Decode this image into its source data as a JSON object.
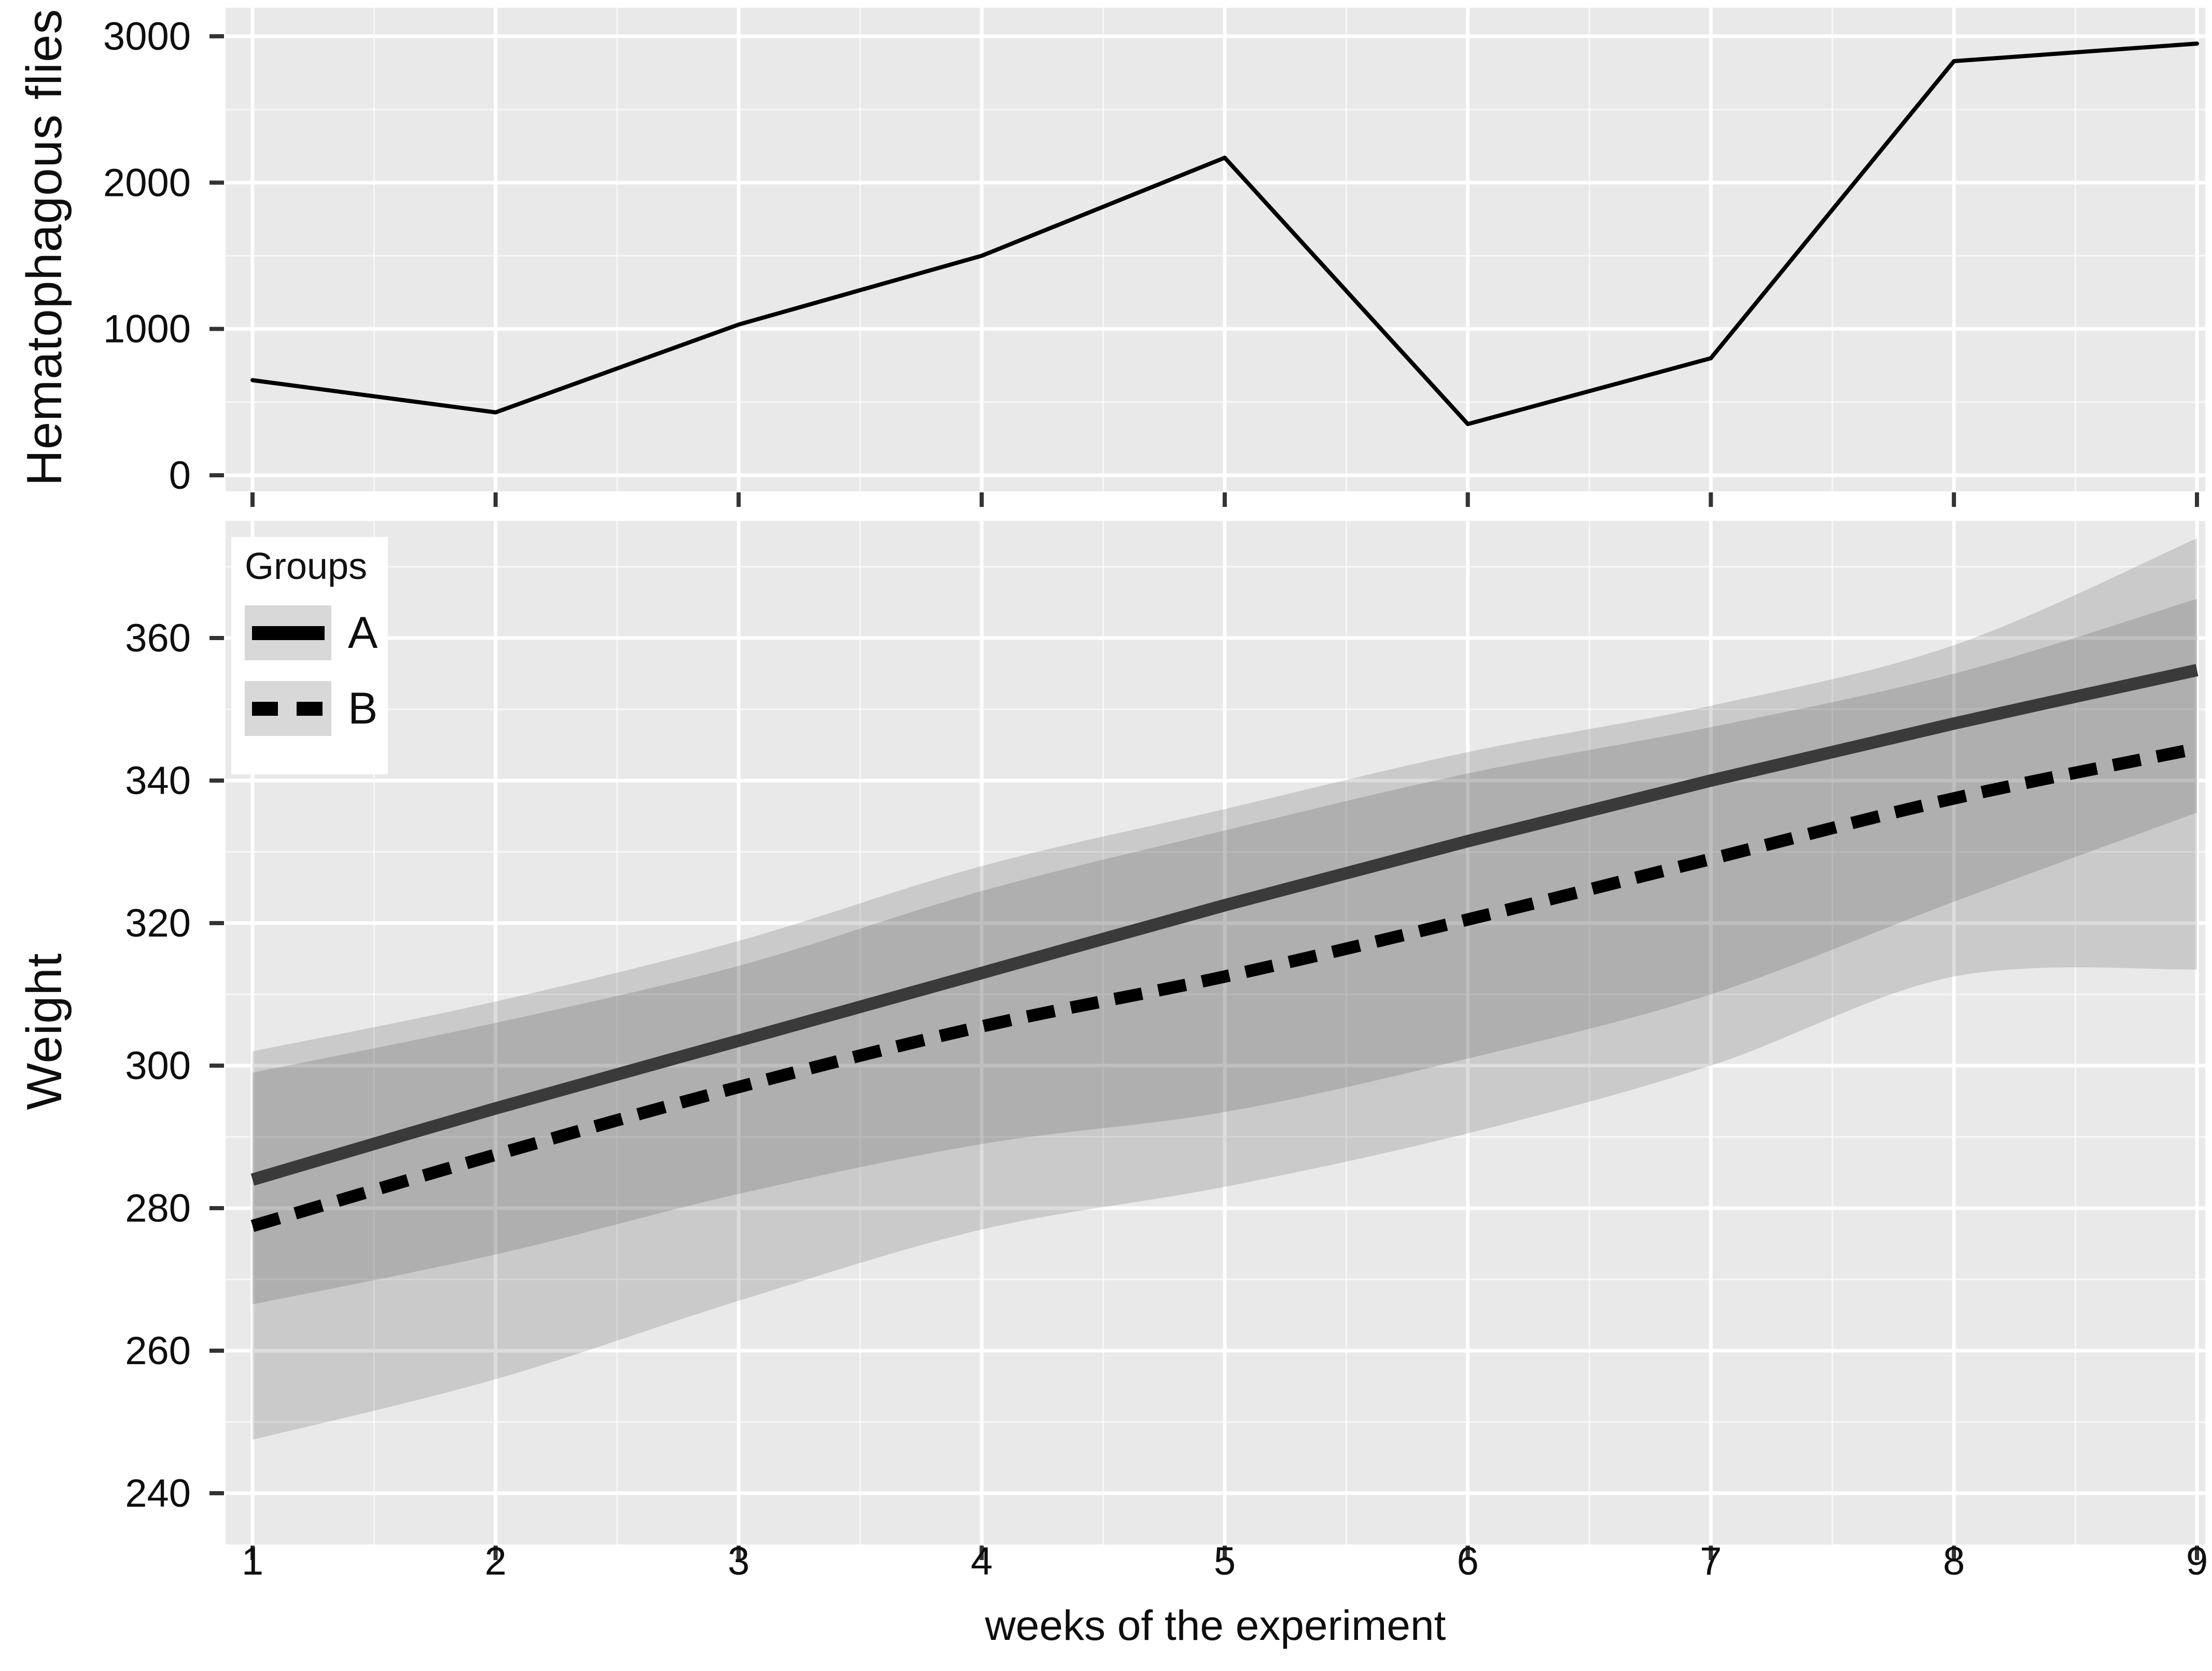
{
  "figure": {
    "background": "#ffffff",
    "panel_background": "#e9e9e9",
    "grid_major_color": "#ffffff",
    "grid_minor_color": "rgba(255,255,255,0.65)",
    "tick_color": "#333333",
    "ribbon_color": "rgba(0,0,0,0.135)"
  },
  "chart_data": [
    {
      "type": "line",
      "title": "",
      "ylabel": "Hematophagous flies",
      "xlabel": "",
      "x": [
        1,
        2,
        3,
        4,
        5,
        6,
        7,
        8,
        9
      ],
      "values": [
        650,
        430,
        1030,
        1500,
        2170,
        350,
        800,
        2830,
        2950
      ],
      "line_color": "#000000",
      "yticks": [
        0,
        1000,
        2000,
        3000
      ],
      "ytick_labels": [
        "0",
        "1000",
        "2000",
        "3000"
      ],
      "yticks_minor": [
        500,
        1500,
        2500
      ],
      "ylim": [
        0,
        3100
      ],
      "xlim": [
        1,
        9
      ],
      "grid": "on",
      "legend": "none"
    },
    {
      "type": "line",
      "title": "",
      "ylabel": "Weight",
      "xlabel": "weeks of the experiment",
      "x": [
        1,
        2,
        3,
        4,
        5,
        6,
        7,
        8,
        9
      ],
      "xtick_labels": [
        "1",
        "2",
        "3",
        "4",
        "5",
        "6",
        "7",
        "8",
        "9"
      ],
      "yticks": [
        240,
        260,
        280,
        300,
        320,
        340,
        360
      ],
      "ytick_labels": [
        "240",
        "260",
        "280",
        "300",
        "320",
        "340",
        "360"
      ],
      "yticks_minor": [
        250,
        270,
        290,
        310,
        330,
        350,
        370
      ],
      "ylim": [
        233,
        376
      ],
      "xlim": [
        1,
        9
      ],
      "grid": "on",
      "legend_position": "top-left",
      "legend": {
        "title": "Groups",
        "entries": [
          {
            "label": "A",
            "style": "solid"
          },
          {
            "label": "B",
            "style": "dashed"
          }
        ]
      },
      "series": [
        {
          "name": "A",
          "style": "solid",
          "color": "#3a3a3a",
          "values": [
            284,
            294,
            303.5,
            313,
            322.5,
            331.5,
            340,
            348,
            355.5
          ],
          "ci_upper": [
            302,
            309,
            317.5,
            328,
            336,
            344,
            350.5,
            359,
            374
          ],
          "ci_lower": [
            266.5,
            273.5,
            282,
            289,
            293.5,
            301,
            310,
            323,
            335.5
          ]
        },
        {
          "name": "B",
          "style": "dashed",
          "color": "#000000",
          "values": [
            277.5,
            287.5,
            297,
            305.5,
            312.5,
            320.5,
            329,
            337.5,
            344.5
          ],
          "ci_upper": [
            299,
            306,
            314,
            324.5,
            333,
            341,
            347.5,
            355,
            365.5
          ],
          "ci_lower": [
            247.5,
            256,
            267,
            277,
            283,
            290.5,
            300,
            312.5,
            313.5
          ]
        }
      ]
    }
  ]
}
